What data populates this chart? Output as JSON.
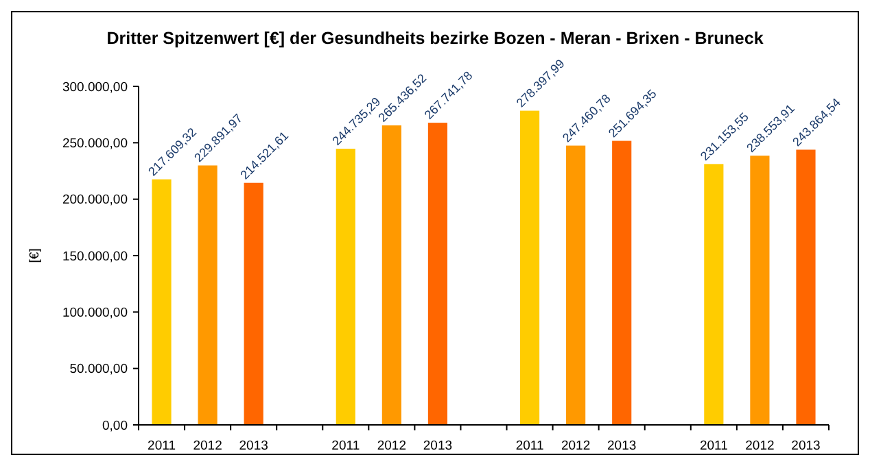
{
  "chart_data": {
    "type": "bar",
    "title": "Dritter Spitzenwert [€] der Gesundheits bezirke Bozen - Meran - Brixen - Bruneck",
    "ylabel": "[€]",
    "categories": [
      "2011",
      "2012",
      "2013",
      null,
      "2011",
      "2012",
      "2013",
      null,
      "2011",
      "2012",
      "2013",
      null,
      "2011",
      "2012",
      "2013"
    ],
    "values": [
      217609.32,
      229891.97,
      214521.61,
      null,
      244735.29,
      265436.52,
      267741.78,
      null,
      278397.99,
      247460.78,
      251694.35,
      null,
      231153.55,
      238553.91,
      243864.54
    ],
    "colors": [
      "#ffcc00",
      "#ff9900",
      "#ff6600",
      null,
      "#ffcc00",
      "#ff9900",
      "#ff6600",
      null,
      "#ffcc00",
      "#ff9900",
      "#ff6600",
      null,
      "#ffcc00",
      "#ff9900",
      "#ff6600"
    ],
    "value_labels": [
      "217.609,32",
      "229.891,97",
      "214.521,61",
      null,
      "244.735,29",
      "265.436,52",
      "267.741,78",
      null,
      "278.397,99",
      "247.460,78",
      "251.694,35",
      null,
      "231.153,55",
      "238.553,91",
      "243.864,54"
    ],
    "ylim": [
      0,
      300000
    ],
    "yticks": [
      {
        "value": 0,
        "label": "0,00"
      },
      {
        "value": 50000,
        "label": "50.000,00"
      },
      {
        "value": 100000,
        "label": "100.000,00"
      },
      {
        "value": 150000,
        "label": "150.000,00"
      },
      {
        "value": 200000,
        "label": "200.000,00"
      },
      {
        "value": 250000,
        "label": "250.000,00"
      },
      {
        "value": 300000,
        "label": "300.000,00"
      }
    ],
    "grid": false
  }
}
